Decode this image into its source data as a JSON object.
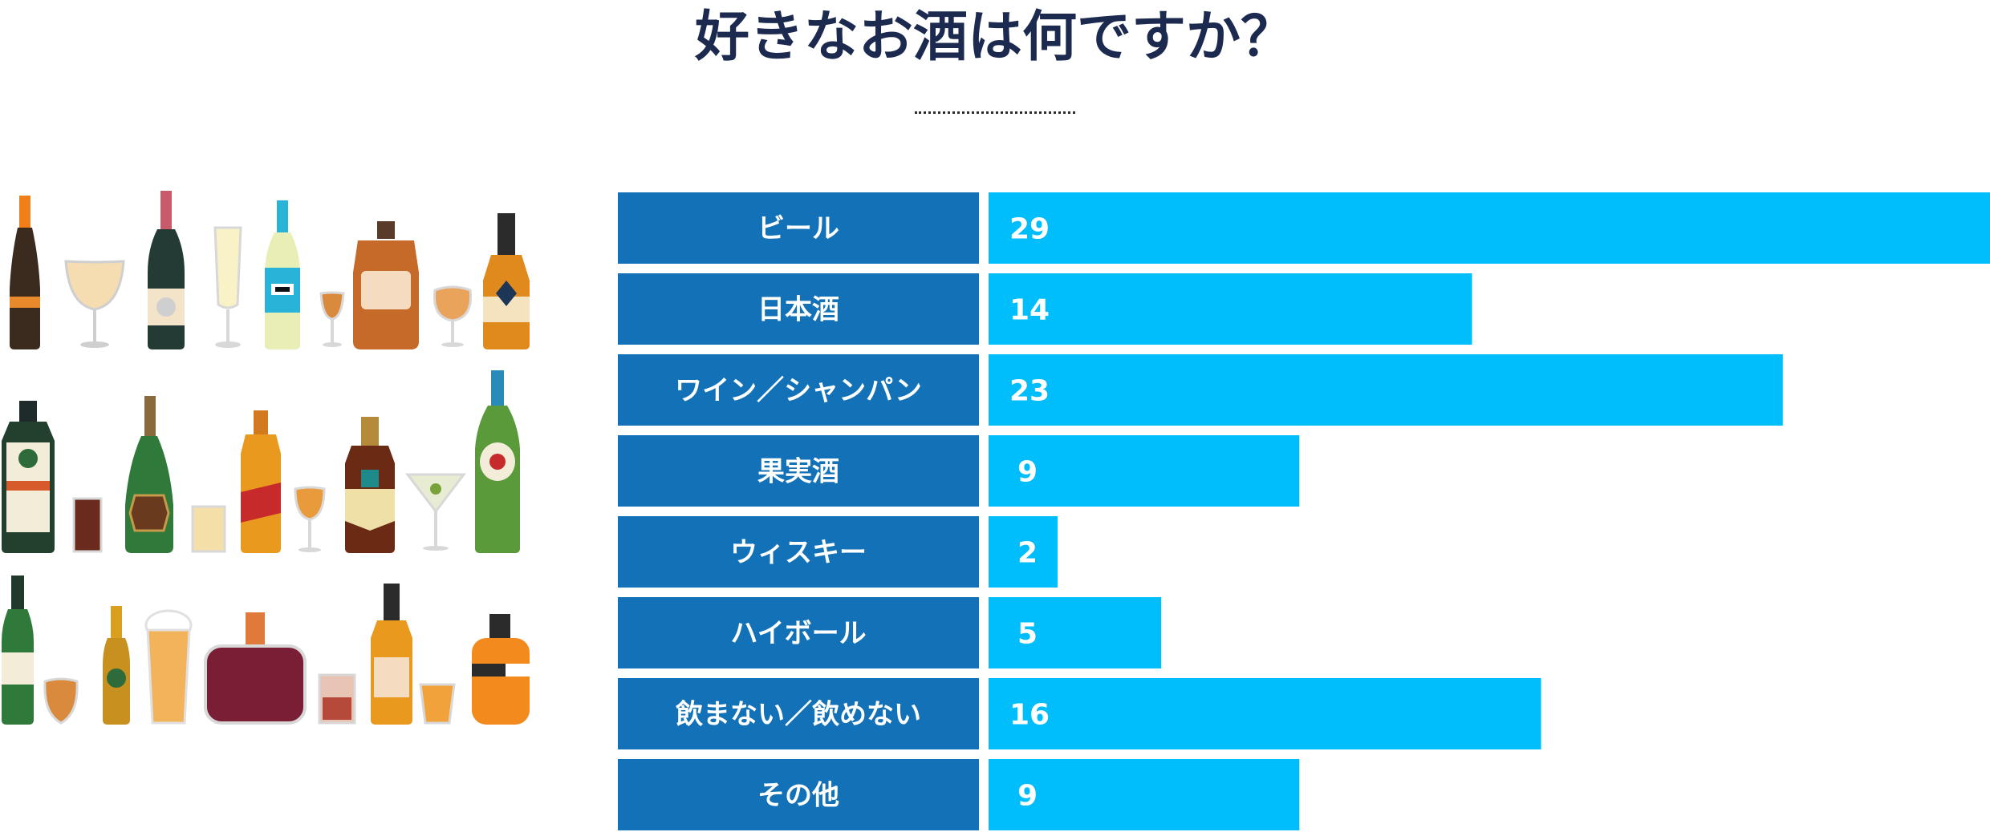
{
  "title": "好きなお酒は何ですか？",
  "colors": {
    "title": "#1b2a4e",
    "category_box": "#1372b7",
    "bar": "#00bdfb"
  },
  "chart_data": {
    "type": "bar",
    "orientation": "horizontal",
    "title": "好きなお酒は何ですか？",
    "categories": [
      "ビール",
      "日本酒",
      "ワイン／シャンパン",
      "果実酒",
      "ウィスキー",
      "ハイボール",
      "飲まない／飲めない",
      "その他"
    ],
    "values": [
      29,
      14,
      23,
      9,
      2,
      5,
      16,
      9
    ],
    "xlim": [
      0,
      29
    ],
    "grid": false,
    "legend": "none"
  }
}
